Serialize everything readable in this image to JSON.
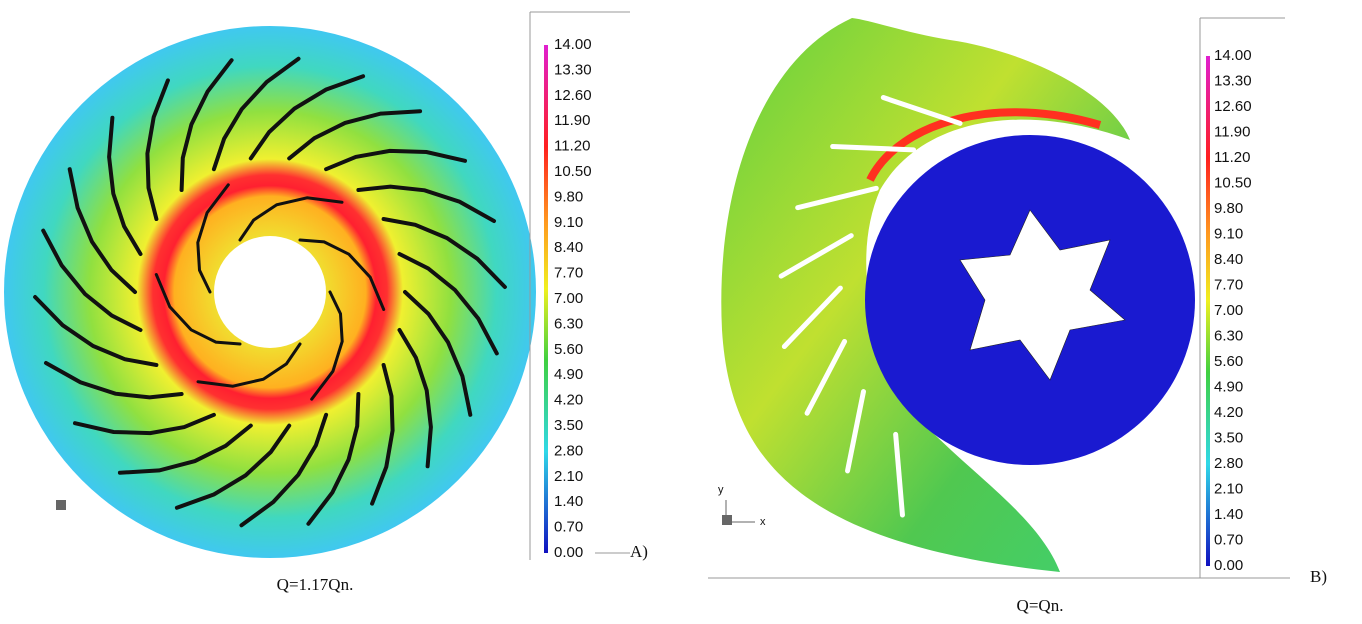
{
  "panels": [
    {
      "ticks": [
        "14.00",
        "13.30",
        "12.60",
        "11.90",
        "11.20",
        "10.50",
        "9.80",
        "9.10",
        "8.40",
        "7.70",
        "7.00",
        "6.30",
        "5.60",
        "4.90",
        "4.20",
        "3.50",
        "2.80",
        "2.10",
        "1.40",
        "0.70",
        "0.00"
      ],
      "label": "A)",
      "caption": "Q=1.17Qn."
    },
    {
      "ticks": [
        "14.00",
        "13.30",
        "12.60",
        "11.90",
        "11.20",
        "10.50",
        "9.80",
        "9.10",
        "8.40",
        "7.70",
        "7.00",
        "6.30",
        "5.60",
        "4.90",
        "4.20",
        "3.50",
        "2.80",
        "2.10",
        "1.40",
        "0.70",
        "0.00"
      ],
      "label": "B)",
      "caption": "Q=Qn.",
      "axes": {
        "y": "y",
        "x": "x"
      }
    }
  ]
}
